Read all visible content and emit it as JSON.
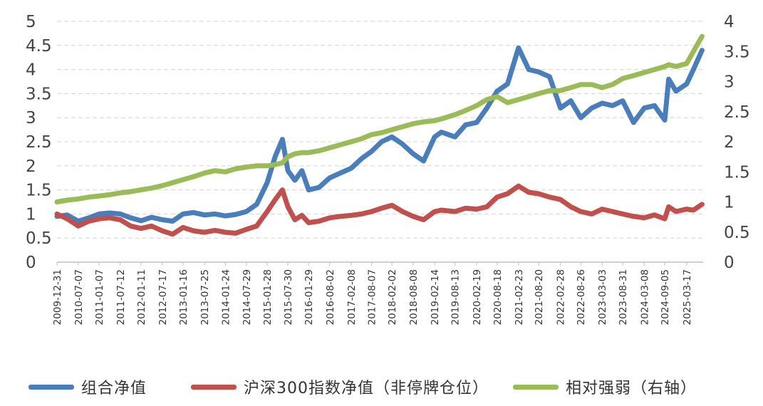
{
  "chart_data": {
    "type": "line",
    "title": "",
    "xlabel": "",
    "ylabel": "",
    "x_ticks": [
      "2009-12-31",
      "2010-07-07",
      "2011-01-07",
      "2011-07-12",
      "2012-01-11",
      "2012-07-17",
      "2013-01-16",
      "2013-07-25",
      "2014-01-24",
      "2014-07-29",
      "2015-01-28",
      "2015-07-30",
      "2016-01-29",
      "2016-08-02",
      "2017-02-08",
      "2017-08-07",
      "2018-02-02",
      "2018-08-08",
      "2019-02-14",
      "2019-08-13",
      "2020-02-19",
      "2020-08-18",
      "2021-02-23",
      "2021-08-20",
      "2022-02-28",
      "2022-08-26",
      "2023-03-03",
      "2023-08-31",
      "2024-03-08",
      "2024-09-05",
      "2025-03-17"
    ],
    "y_left_ticks": [
      "0",
      "0.5",
      "1",
      "1.5",
      "2",
      "2.5",
      "3",
      "3.5",
      "4",
      "4.5",
      "5"
    ],
    "y_right_ticks": [
      "0",
      "0.5",
      "1",
      "1.5",
      "2",
      "2.5",
      "3",
      "3.5",
      "4"
    ],
    "ylim_left": [
      0,
      5
    ],
    "ylim_right": [
      0,
      4
    ],
    "grid": "horizontal dashed",
    "legend_position": "bottom",
    "series": [
      {
        "name": "组合净值",
        "axis": "left",
        "color": "#4a7ebb",
        "x": [
          "2009-12-31",
          "2010-03-31",
          "2010-07-07",
          "2010-10-08",
          "2011-01-07",
          "2011-04-08",
          "2011-07-12",
          "2011-10-11",
          "2012-01-11",
          "2012-04-13",
          "2012-07-17",
          "2012-10-16",
          "2013-01-16",
          "2013-04-19",
          "2013-07-25",
          "2013-10-25",
          "2014-01-24",
          "2014-04-25",
          "2014-07-29",
          "2014-10-28",
          "2015-01-28",
          "2015-04-10",
          "2015-06-12",
          "2015-07-30",
          "2015-09-30",
          "2015-12-01",
          "2016-01-29",
          "2016-04-29",
          "2016-08-02",
          "2016-11-04",
          "2017-02-08",
          "2017-05-10",
          "2017-08-07",
          "2017-11-03",
          "2018-02-02",
          "2018-05-07",
          "2018-08-08",
          "2018-11-08",
          "2019-02-14",
          "2019-04-15",
          "2019-08-13",
          "2019-11-14",
          "2020-02-19",
          "2020-05-20",
          "2020-08-18",
          "2020-11-18",
          "2021-02-23",
          "2021-05-24",
          "2021-08-20",
          "2021-11-24",
          "2022-02-28",
          "2022-05-30",
          "2022-08-26",
          "2022-11-30",
          "2023-03-03",
          "2023-06-02",
          "2023-08-31",
          "2023-12-05",
          "2024-03-08",
          "2024-06-07",
          "2024-09-05",
          "2024-10-10",
          "2024-12-13",
          "2025-03-17",
          "2025-05-16",
          "2025-07-31"
        ],
        "values": [
          0.95,
          0.98,
          0.85,
          0.92,
          1.0,
          1.02,
          1.0,
          0.92,
          0.86,
          0.93,
          0.88,
          0.85,
          1.0,
          1.03,
          0.98,
          1.0,
          0.96,
          0.99,
          1.05,
          1.2,
          1.65,
          2.2,
          2.55,
          1.9,
          1.7,
          1.9,
          1.5,
          1.55,
          1.75,
          1.85,
          1.95,
          2.15,
          2.3,
          2.5,
          2.6,
          2.45,
          2.25,
          2.1,
          2.6,
          2.7,
          2.6,
          2.85,
          2.9,
          3.2,
          3.55,
          3.7,
          4.45,
          4.0,
          3.95,
          3.85,
          3.2,
          3.35,
          3.0,
          3.2,
          3.3,
          3.25,
          3.35,
          2.9,
          3.2,
          3.25,
          2.95,
          3.8,
          3.55,
          3.7,
          4.0,
          4.4
        ]
      },
      {
        "name": "沪深300指数净值（非停牌仓位）",
        "axis": "left",
        "color": "#c0504d",
        "x": [
          "2009-12-31",
          "2010-03-31",
          "2010-07-07",
          "2010-10-08",
          "2011-01-07",
          "2011-04-08",
          "2011-07-12",
          "2011-10-11",
          "2012-01-11",
          "2012-04-13",
          "2012-07-17",
          "2012-10-16",
          "2013-01-16",
          "2013-04-19",
          "2013-07-25",
          "2013-10-25",
          "2014-01-24",
          "2014-04-25",
          "2014-07-29",
          "2014-10-28",
          "2015-01-28",
          "2015-04-10",
          "2015-06-12",
          "2015-07-30",
          "2015-09-30",
          "2015-12-01",
          "2016-01-29",
          "2016-04-29",
          "2016-08-02",
          "2016-11-04",
          "2017-02-08",
          "2017-05-10",
          "2017-08-07",
          "2017-11-03",
          "2018-02-02",
          "2018-05-07",
          "2018-08-08",
          "2018-11-08",
          "2019-02-14",
          "2019-04-15",
          "2019-08-13",
          "2019-11-14",
          "2020-02-19",
          "2020-05-20",
          "2020-08-18",
          "2020-11-18",
          "2021-02-23",
          "2021-05-24",
          "2021-08-20",
          "2021-11-24",
          "2022-02-28",
          "2022-05-30",
          "2022-08-26",
          "2022-11-30",
          "2023-03-03",
          "2023-06-02",
          "2023-08-31",
          "2023-12-05",
          "2024-03-08",
          "2024-06-07",
          "2024-09-05",
          "2024-10-10",
          "2024-12-13",
          "2025-03-17",
          "2025-05-16",
          "2025-07-31"
        ],
        "values": [
          1.0,
          0.9,
          0.75,
          0.85,
          0.9,
          0.92,
          0.88,
          0.75,
          0.7,
          0.75,
          0.65,
          0.58,
          0.72,
          0.65,
          0.62,
          0.66,
          0.62,
          0.6,
          0.68,
          0.75,
          1.05,
          1.3,
          1.5,
          1.15,
          0.88,
          0.97,
          0.82,
          0.85,
          0.92,
          0.95,
          0.97,
          1.0,
          1.05,
          1.12,
          1.18,
          1.05,
          0.95,
          0.88,
          1.05,
          1.08,
          1.05,
          1.12,
          1.1,
          1.15,
          1.35,
          1.42,
          1.58,
          1.45,
          1.42,
          1.35,
          1.3,
          1.15,
          1.05,
          1.0,
          1.1,
          1.05,
          1.0,
          0.95,
          0.92,
          0.98,
          0.9,
          1.15,
          1.05,
          1.1,
          1.08,
          1.2
        ]
      },
      {
        "name": "相对强弱（右轴）",
        "axis": "right",
        "color": "#9bbb59",
        "x": [
          "2009-12-31",
          "2010-03-31",
          "2010-07-07",
          "2010-10-08",
          "2011-01-07",
          "2011-04-08",
          "2011-07-12",
          "2011-10-11",
          "2012-01-11",
          "2012-04-13",
          "2012-07-17",
          "2012-10-16",
          "2013-01-16",
          "2013-04-19",
          "2013-07-25",
          "2013-10-25",
          "2014-01-24",
          "2014-04-25",
          "2014-07-29",
          "2014-10-28",
          "2015-01-28",
          "2015-04-10",
          "2015-06-12",
          "2015-07-30",
          "2015-09-30",
          "2015-12-01",
          "2016-01-29",
          "2016-04-29",
          "2016-08-02",
          "2016-11-04",
          "2017-02-08",
          "2017-05-10",
          "2017-08-07",
          "2017-11-03",
          "2018-02-02",
          "2018-05-07",
          "2018-08-08",
          "2018-11-08",
          "2019-02-14",
          "2019-04-15",
          "2019-08-13",
          "2019-11-14",
          "2020-02-19",
          "2020-05-20",
          "2020-08-18",
          "2020-11-18",
          "2021-02-23",
          "2021-05-24",
          "2021-08-20",
          "2021-11-24",
          "2022-02-28",
          "2022-05-30",
          "2022-08-26",
          "2022-11-30",
          "2023-03-03",
          "2023-06-02",
          "2023-08-31",
          "2023-12-05",
          "2024-03-08",
          "2024-06-07",
          "2024-09-05",
          "2024-10-10",
          "2024-12-13",
          "2025-03-17",
          "2025-05-16",
          "2025-07-31"
        ],
        "values": [
          1.0,
          1.03,
          1.05,
          1.08,
          1.1,
          1.12,
          1.15,
          1.17,
          1.2,
          1.23,
          1.27,
          1.32,
          1.37,
          1.42,
          1.48,
          1.52,
          1.5,
          1.55,
          1.58,
          1.6,
          1.6,
          1.62,
          1.65,
          1.75,
          1.8,
          1.82,
          1.82,
          1.85,
          1.9,
          1.95,
          2.0,
          2.05,
          2.12,
          2.15,
          2.2,
          2.25,
          2.3,
          2.33,
          2.35,
          2.38,
          2.45,
          2.52,
          2.6,
          2.7,
          2.75,
          2.65,
          2.7,
          2.75,
          2.8,
          2.85,
          2.85,
          2.9,
          2.95,
          2.95,
          2.9,
          2.95,
          3.05,
          3.1,
          3.15,
          3.2,
          3.25,
          3.28,
          3.25,
          3.3,
          3.5,
          3.75
        ]
      }
    ]
  }
}
